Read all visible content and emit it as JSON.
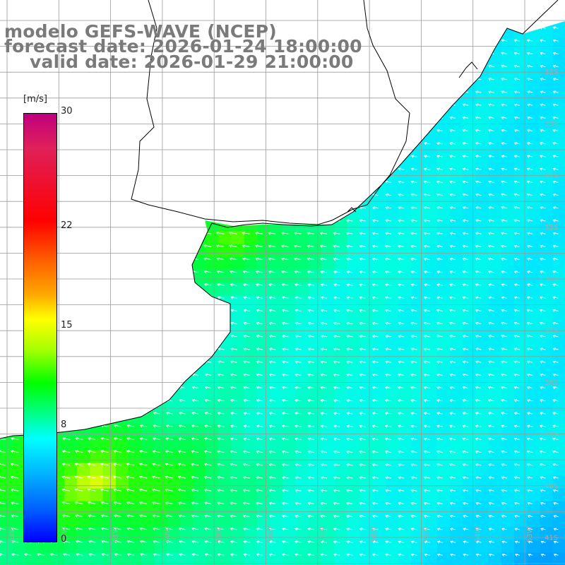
{
  "title": {
    "line1": "modelo GEFS-WAVE (NCEP)",
    "line2": "forecast date: 2026-01-24 18:00:00",
    "line3": "valid date: 2026-01-29 21:00:00"
  },
  "colorbar": {
    "unit": "[m/s]",
    "max": 30,
    "ticks": [
      "30",
      "22",
      "15",
      "8",
      "0"
    ],
    "tick_values": [
      30,
      22,
      15,
      8,
      0
    ]
  },
  "grid": {
    "lat_labels": [
      "32S",
      "33S",
      "34S",
      "35S",
      "36S",
      "37S",
      "38S",
      "39S",
      "40S",
      "41S"
    ],
    "lon_labels": [
      "63W",
      "62W",
      "61W",
      "60W",
      "59W",
      "58W",
      "57W",
      "56W",
      "55W",
      "54W",
      "53W",
      "52W"
    ]
  },
  "colors": {
    "land": "#ffffff",
    "grid_line": "#9a9a9a",
    "coast": "#000000",
    "arrow": "#ffffff",
    "title_text": "#7a7a7a"
  },
  "field": {
    "variable": "wind speed",
    "unit": "m/s",
    "range": [
      0,
      30
    ]
  }
}
